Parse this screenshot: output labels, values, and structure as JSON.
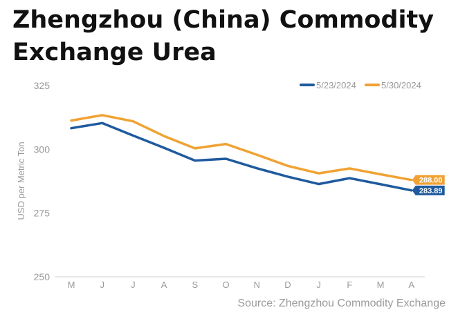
{
  "title_line1": "Zhengzhou (China) Commodity",
  "title_line2": "Exchange Urea",
  "source": "Source: Zhengzhou Commodity Exchange",
  "colors": {
    "series1": "#1f5a9e",
    "series2": "#f0a233",
    "axis_text": "#9a9a9a",
    "axis_line": "#cfcfcf"
  },
  "chart_data": {
    "type": "line",
    "title": "Zhengzhou (China) Commodity Exchange Urea",
    "xlabel": "",
    "ylabel": "USD per Metric Ton",
    "categories": [
      "M",
      "J",
      "J",
      "A",
      "S",
      "O",
      "N",
      "D",
      "J",
      "F",
      "M",
      "A"
    ],
    "ylim": [
      250,
      325
    ],
    "yticks": [
      325,
      300,
      275,
      250
    ],
    "grid": false,
    "legend": "top-right",
    "series": [
      {
        "name": "5/23/2024",
        "values": [
          308.3,
          310.3,
          305.4,
          300.6,
          295.6,
          296.3,
          292.6,
          289.3,
          286.4,
          288.7,
          286.3,
          283.89
        ],
        "end_label": "283.89"
      },
      {
        "name": "5/30/2024",
        "values": [
          311.3,
          313.4,
          311.0,
          305.2,
          300.4,
          302.1,
          297.9,
          293.5,
          290.6,
          292.5,
          290.2,
          288.0
        ],
        "end_label": "288.00"
      }
    ]
  }
}
